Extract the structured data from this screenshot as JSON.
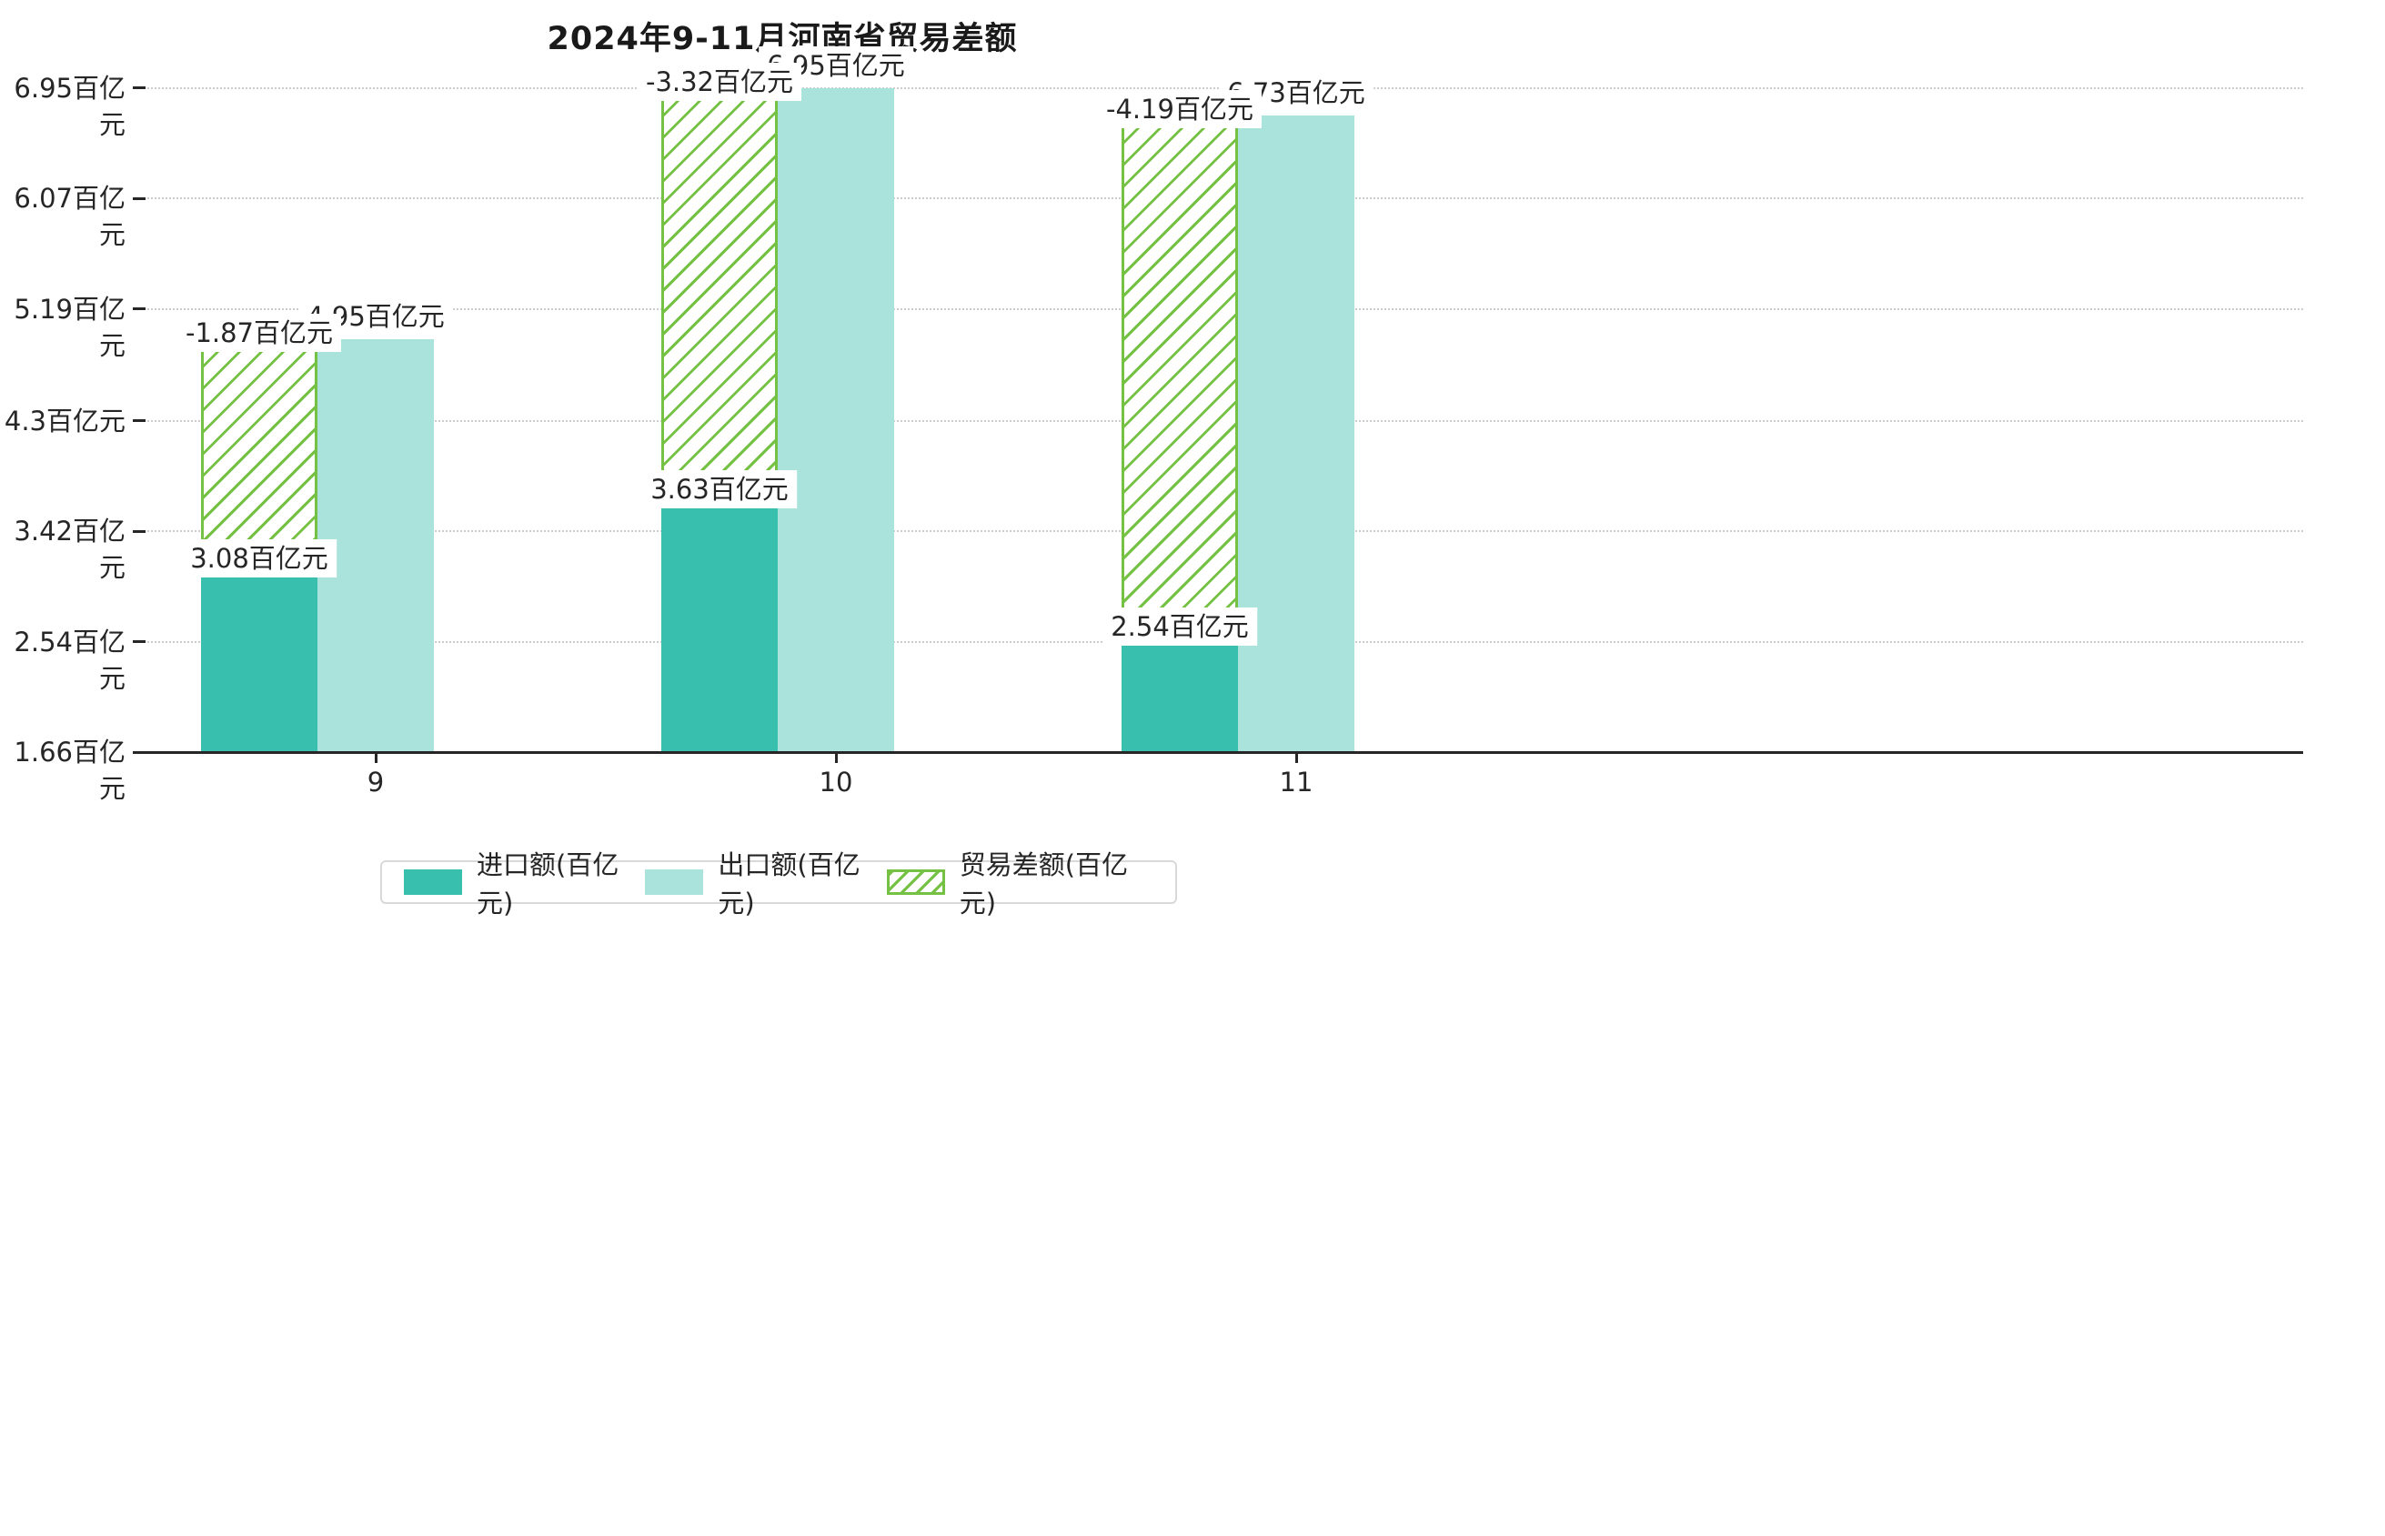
{
  "title": "2024年9-11月河南省贸易差额",
  "chart_data": {
    "type": "bar",
    "title": "2024年9-11月河南省贸易差额",
    "categories": [
      "9",
      "10",
      "11"
    ],
    "unit": "百亿元",
    "series": [
      {
        "name": "进口额(百亿元)",
        "values": [
          3.08,
          3.63,
          2.54
        ],
        "color": "#38bfae",
        "style": "solid"
      },
      {
        "name": "出口额(百亿元)",
        "values": [
          4.95,
          6.95,
          6.73
        ],
        "color": "#aae3db",
        "style": "solid"
      },
      {
        "name": "贸易差额(百亿元)",
        "values": [
          -1.87,
          -3.32,
          -4.19
        ],
        "color": "#74c144",
        "style": "hatched"
      }
    ],
    "bar_labels": {
      "import": [
        "3.08百亿元",
        "3.63百亿元",
        "2.54百亿元"
      ],
      "export": [
        "4.95百亿元",
        "6.95百亿元",
        "6.73百亿元"
      ],
      "balance": [
        "-1.87百亿元",
        "-3.32百亿元",
        "-4.19百亿元"
      ]
    },
    "y_ticks": [
      {
        "label": "1.66百亿元",
        "value": 1.66
      },
      {
        "label": "2.54百亿元",
        "value": 2.54
      },
      {
        "label": "3.42百亿元",
        "value": 3.42
      },
      {
        "label": "4.3百亿元",
        "value": 4.3
      },
      {
        "label": "5.19百亿元",
        "value": 5.19
      },
      {
        "label": "6.07百亿元",
        "value": 6.07
      },
      {
        "label": "6.95百亿元",
        "value": 6.95
      }
    ],
    "ylim": [
      1.66,
      6.95
    ],
    "grid": true,
    "legend_position": "bottom"
  },
  "legend": {
    "items": [
      {
        "label": "进口额(百亿元)",
        "swatch": "solid-teal"
      },
      {
        "label": "出口额(百亿元)",
        "swatch": "solid-lightcyan"
      },
      {
        "label": "贸易差额(百亿元)",
        "swatch": "hatched-green"
      }
    ]
  },
  "colors": {
    "import_bar": "#38bfae",
    "export_bar": "#aae3db",
    "balance_hatch": "#74c144",
    "axis": "#262626",
    "gridline": "#cccccc",
    "label_box": "#ffffff"
  }
}
